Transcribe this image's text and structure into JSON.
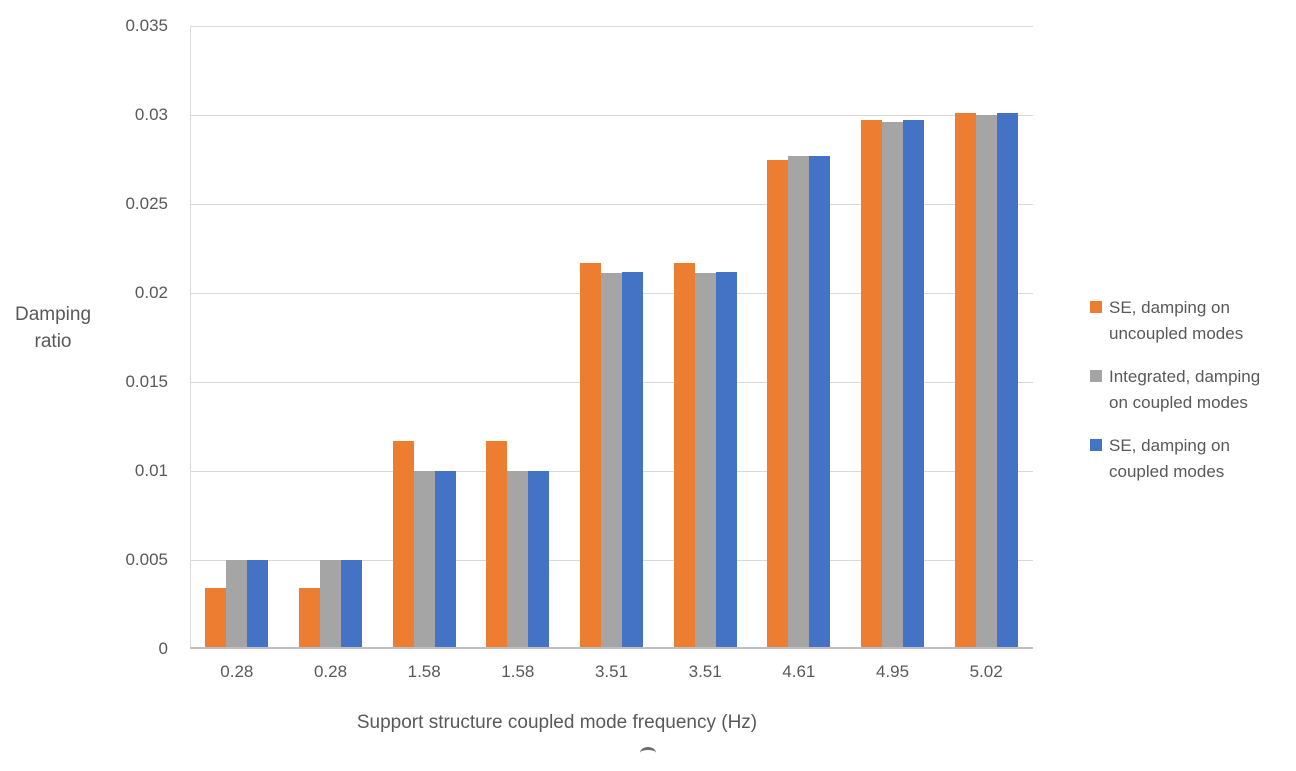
{
  "chart_data": {
    "type": "bar",
    "title": "",
    "categories": [
      "0.28",
      "0.28",
      "1.58",
      "1.58",
      "3.51",
      "3.51",
      "4.61",
      "4.95",
      "5.02"
    ],
    "series": [
      {
        "name": "SE, damping on uncoupled modes",
        "label_lines": [
          "SE, damping on",
          "uncoupled modes"
        ],
        "color": "#ED7D31",
        "values": [
          0.0034,
          0.0034,
          0.0117,
          0.0117,
          0.0217,
          0.0217,
          0.0275,
          0.0297,
          0.0301
        ]
      },
      {
        "name": "Integrated, damping on coupled modes",
        "label_lines": [
          "Integrated, damping",
          "on coupled modes"
        ],
        "color": "#A5A5A5",
        "values": [
          0.005,
          0.005,
          0.01,
          0.01,
          0.0211,
          0.0211,
          0.0277,
          0.0296,
          0.03
        ]
      },
      {
        "name": "SE, damping on coupled modes",
        "label_lines": [
          "SE, damping on",
          "coupled modes"
        ],
        "color": "#4472C4",
        "values": [
          0.005,
          0.005,
          0.01,
          0.01,
          0.0212,
          0.0212,
          0.0277,
          0.0297,
          0.0301
        ]
      }
    ],
    "xlabel": "Support structure coupled mode frequency (Hz)",
    "ylabel": "Damping ratio",
    "ylabel_lines": [
      "Damping",
      "ratio"
    ],
    "ylim": [
      0,
      0.035
    ],
    "ytick_step": 0.005,
    "yticks": [
      "0",
      "0.005",
      "0.01",
      "0.015",
      "0.02",
      "0.025",
      "0.03",
      "0.035"
    ],
    "grid": true,
    "legend_position": "right"
  },
  "colors": {
    "text": "#595959",
    "gridline": "#D9D9D9",
    "axis_line": "#BFBFBF",
    "background": "#FFFFFF"
  }
}
